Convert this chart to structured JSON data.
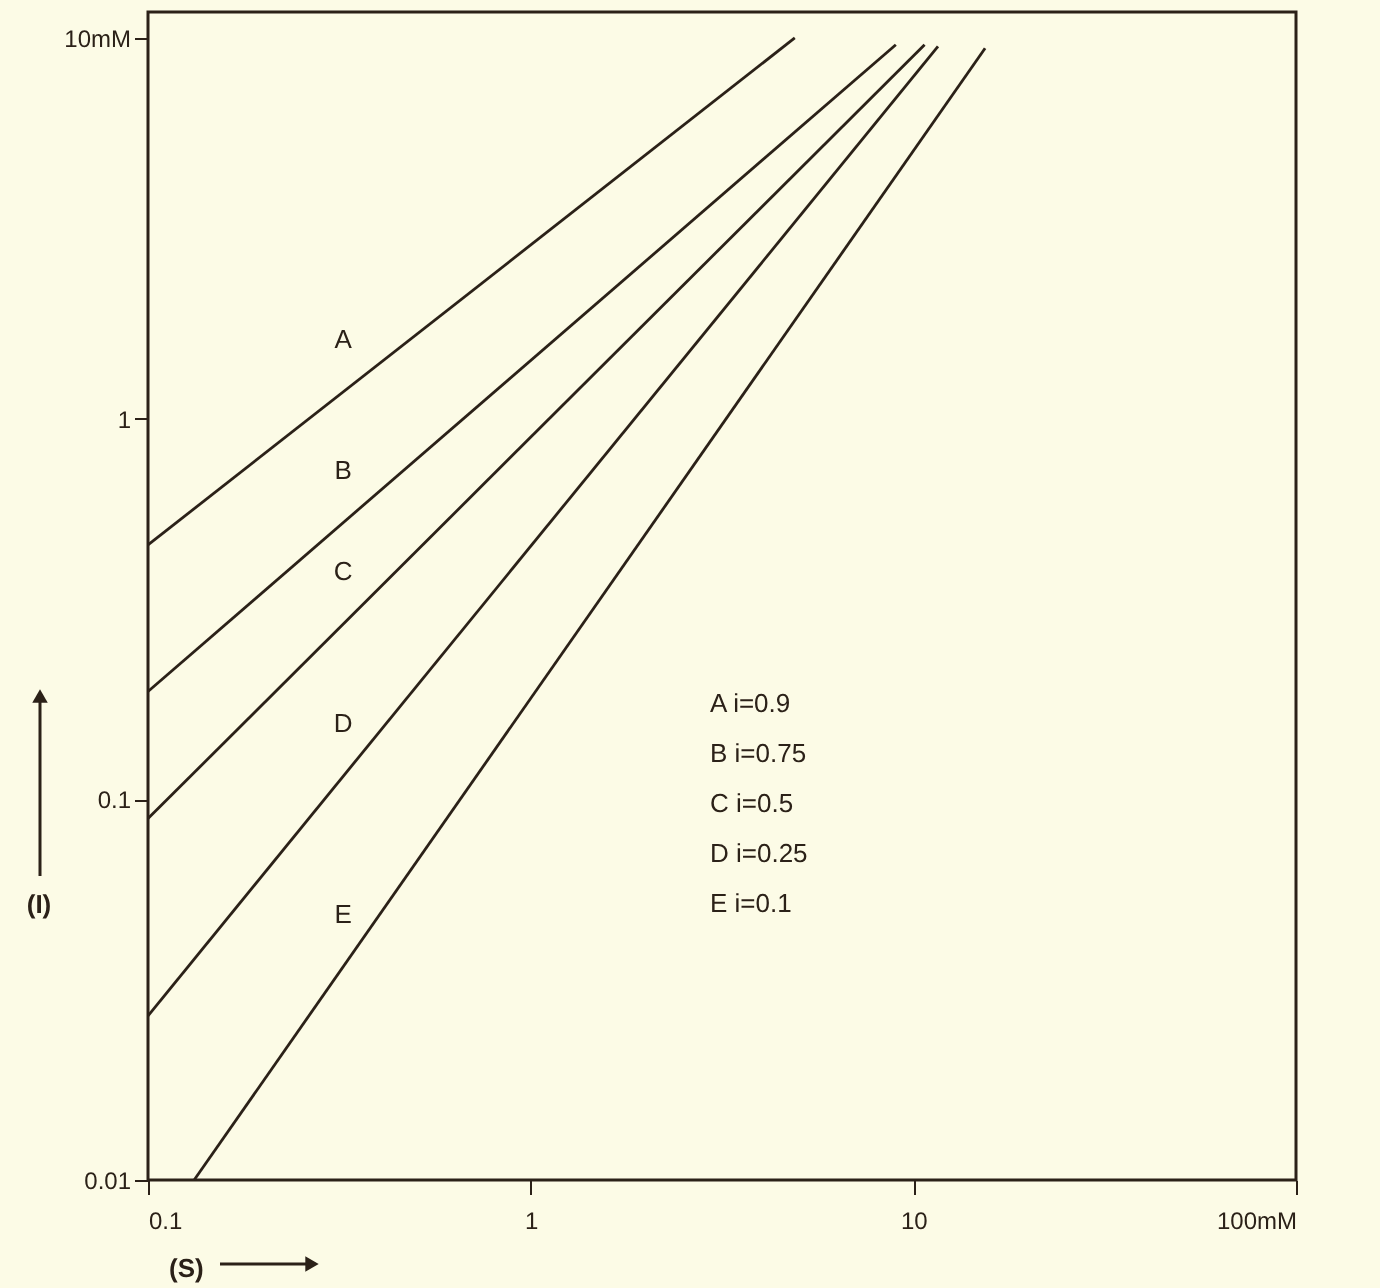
{
  "chart_data": {
    "type": "line",
    "xlabel": "(S)",
    "ylabel": "(I)",
    "log": "xy",
    "grid": false,
    "marker": "none",
    "line_style": "solid",
    "xlim": [
      0.1,
      100
    ],
    "ylim": [
      0.01,
      11.7
    ],
    "xticks": [
      0.1,
      1,
      10,
      {
        "value": 100,
        "label": "100mM"
      }
    ],
    "yticks": [
      0.01,
      0.1,
      1,
      {
        "value": 10,
        "label": "10mM"
      }
    ],
    "series": [
      {
        "name": "A",
        "color": "#2b2118",
        "x": [
          0.1,
          4.9
        ],
        "values": [
          0.466,
          10
        ]
      },
      {
        "name": "B",
        "color": "#2b2118",
        "x": [
          0.1,
          9.0
        ],
        "values": [
          0.192,
          9.6
        ]
      },
      {
        "name": "C",
        "color": "#2b2118",
        "x": [
          0.1,
          10.7
        ],
        "values": [
          0.089,
          9.6
        ]
      },
      {
        "name": "D",
        "color": "#2b2118",
        "x": [
          0.1,
          11.6
        ],
        "values": [
          0.027,
          9.5
        ]
      },
      {
        "name": "E",
        "color": "#2b2118",
        "x": [
          0.132,
          15.4
        ],
        "values": [
          0.01,
          9.4
        ]
      }
    ],
    "annotations": [
      "A  i=0.9",
      "B  i=0.75",
      "C  i=0.5",
      "D  i=0.25",
      "E  i=0.1"
    ]
  }
}
